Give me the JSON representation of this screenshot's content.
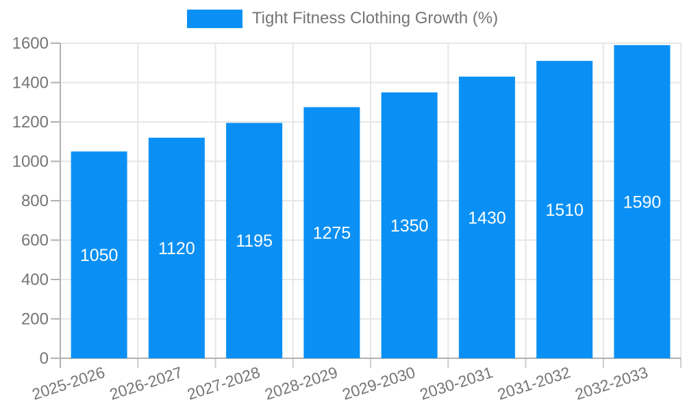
{
  "legend": {
    "label": "Tight Fitness Clothing Growth (%)"
  },
  "chart_data": {
    "type": "bar",
    "title": "Tight Fitness Clothing Growth (%)",
    "series_name": "Tight Fitness Clothing Growth (%)",
    "categories": [
      "2025-2026",
      "2026-2027",
      "2027-2028",
      "2028-2029",
      "2029-2030",
      "2030-2031",
      "2031-2032",
      "2032-2033"
    ],
    "values": [
      1050,
      1120,
      1195,
      1275,
      1350,
      1430,
      1510,
      1590
    ],
    "xlabel": "",
    "ylabel": "",
    "ylim": [
      0,
      1600
    ],
    "yticks": [
      0,
      200,
      400,
      600,
      800,
      1000,
      1200,
      1400,
      1600
    ],
    "grid": "both",
    "legend_position": "top-center",
    "value_label_placement": "inside-middle",
    "bar_color": "#0a90f5",
    "value_label_color": "#ffffff",
    "axis_text_color": "#757575",
    "gridline_color": "#e6e6e6",
    "axis_line_color": "#b0b0b0",
    "minor_tick_color": "#cccccc",
    "background_color": "#ffffff"
  }
}
